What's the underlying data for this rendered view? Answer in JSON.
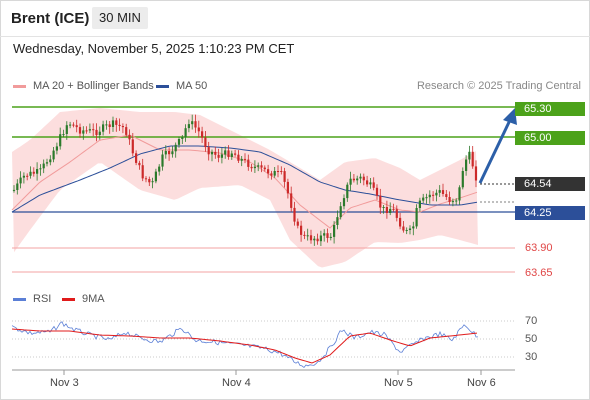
{
  "header": {
    "instrument": "Brent (ICE)",
    "interval": "30 MIN"
  },
  "datetime": "Wednesday, November 5, 2025 1:10:23 PM CET",
  "legend": {
    "ma20": {
      "label": "MA 20 + Bollinger Bands",
      "color": "#f19b9b"
    },
    "ma50": {
      "label": "MA 50",
      "color": "#2c4f99"
    }
  },
  "credit": "Research © 2025 Trading Central",
  "levels": {
    "r2": {
      "label": "65.30",
      "color": "#4ca21a"
    },
    "r1": {
      "label": "65.00",
      "color": "#4ca21a"
    },
    "last": {
      "label": "64.54",
      "color": "#333333"
    },
    "pivot": {
      "label": "64.25",
      "color": "#2c4f99"
    },
    "s1": {
      "label": "63.90",
      "color": "#e04646"
    },
    "s2": {
      "label": "63.65",
      "color": "#e04646"
    }
  },
  "rsi_legend": {
    "rsi": {
      "label": "RSI",
      "color": "#5b7fd6"
    },
    "ma9": {
      "label": "9MA",
      "color": "#e01b1b"
    }
  },
  "rsi_ticks": [
    "70",
    "50",
    "30"
  ],
  "dates": [
    "Nov 3",
    "Nov 4",
    "Nov 5",
    "Nov 6"
  ],
  "colors": {
    "up": "#2b7a2b",
    "down": "#cc2a2a",
    "arrow": "#2c5fa8",
    "band": "#fcdede"
  }
}
